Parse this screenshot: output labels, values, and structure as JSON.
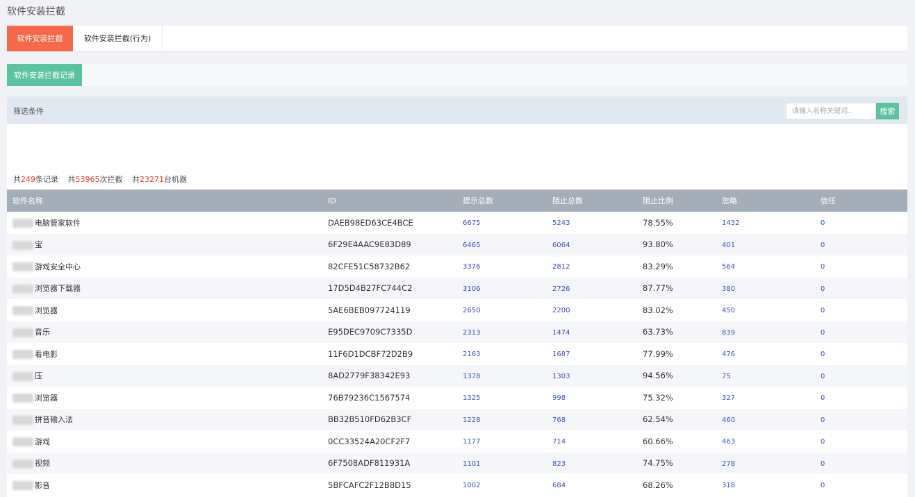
{
  "page": {
    "title": "软件安装拦截"
  },
  "tabs": [
    {
      "label": "软件安装拦截",
      "active": true
    },
    {
      "label": "软件安装拦截(行为)",
      "active": false
    }
  ],
  "actions": {
    "record_button": "软件安装拦截记录"
  },
  "filter": {
    "label": "筛选条件",
    "search_placeholder": "请输入名称关键词..",
    "search_button": "搜索"
  },
  "summary": {
    "prefix1": "共",
    "records": "249",
    "suffix1": "条记录",
    "prefix2": "共",
    "intercepts": "53965",
    "suffix2": "次拦截",
    "prefix3": "共",
    "machines": "23271",
    "suffix3": "台机器"
  },
  "table": {
    "headers": [
      "软件名称",
      "ID",
      "提示总数",
      "阻止总数",
      "阻止比例",
      "忽略",
      "信任"
    ],
    "rows": [
      {
        "name": "电脑管家软件",
        "id": "DAEB98ED63CE4BCE",
        "prompt": "6675",
        "block": "5243",
        "ratio": "78.55%",
        "ignore": "1432",
        "trust": "0"
      },
      {
        "name": "宝",
        "id": "6F29E4AAC9E83D89",
        "prompt": "6465",
        "block": "6064",
        "ratio": "93.80%",
        "ignore": "401",
        "trust": "0"
      },
      {
        "name": "游戏安全中心",
        "id": "82CFE51C58732B62",
        "prompt": "3376",
        "block": "2812",
        "ratio": "83.29%",
        "ignore": "564",
        "trust": "0"
      },
      {
        "name": "浏览器下载器",
        "id": "17D5D4B27FC744C2",
        "prompt": "3106",
        "block": "2726",
        "ratio": "87.77%",
        "ignore": "380",
        "trust": "0"
      },
      {
        "name": "浏览器",
        "id": "5AE6BEB097724119",
        "prompt": "2650",
        "block": "2200",
        "ratio": "83.02%",
        "ignore": "450",
        "trust": "0"
      },
      {
        "name": "音乐",
        "id": "E95DEC9709C7335D",
        "prompt": "2313",
        "block": "1474",
        "ratio": "63.73%",
        "ignore": "839",
        "trust": "0"
      },
      {
        "name": "看电影",
        "id": "11F6D1DCBF72D2B9",
        "prompt": "2163",
        "block": "1687",
        "ratio": "77.99%",
        "ignore": "476",
        "trust": "0"
      },
      {
        "name": "压",
        "id": "8AD2779F38342E93",
        "prompt": "1378",
        "block": "1303",
        "ratio": "94.56%",
        "ignore": "75",
        "trust": "0"
      },
      {
        "name": "浏览器",
        "id": "76B79236C1567574",
        "prompt": "1325",
        "block": "998",
        "ratio": "75.32%",
        "ignore": "327",
        "trust": "0"
      },
      {
        "name": "拼音输入法",
        "id": "BB32B510FD62B3CF",
        "prompt": "1228",
        "block": "768",
        "ratio": "62.54%",
        "ignore": "460",
        "trust": "0"
      },
      {
        "name": "游戏",
        "id": "0CC33524A20CF2F7",
        "prompt": "1177",
        "block": "714",
        "ratio": "60.66%",
        "ignore": "463",
        "trust": "0"
      },
      {
        "name": "视频",
        "id": "6F7508ADF811931A",
        "prompt": "1101",
        "block": "823",
        "ratio": "74.75%",
        "ignore": "278",
        "trust": "0"
      },
      {
        "name": "影音",
        "id": "5BFCAFC2F12B8D15",
        "prompt": "1002",
        "block": "684",
        "ratio": "68.26%",
        "ignore": "318",
        "trust": "0"
      }
    ]
  },
  "colors": {
    "active_tab": "#f5694b",
    "green_button": "#5bc3a0",
    "link": "#3d4fd1",
    "highlight_number": "#e6412d",
    "table_header": "#a5aeb8"
  }
}
